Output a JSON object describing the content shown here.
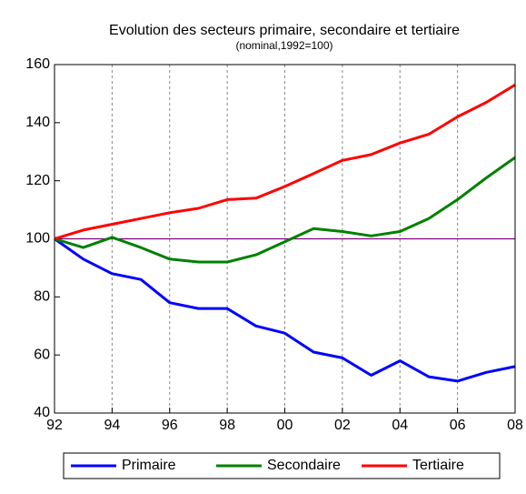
{
  "chart_data": {
    "type": "line",
    "title": "Evolution des secteurs primaire, secondaire et tertiaire",
    "subtitle": "(nominal,1992=100)",
    "categories": [
      "92",
      null,
      "94",
      null,
      "96",
      null,
      "98",
      null,
      "00",
      null,
      "02",
      null,
      "04",
      null,
      "06",
      null,
      "08"
    ],
    "series": [
      {
        "name": "Primaire",
        "color": "#0000ff",
        "values": [
          100,
          93,
          88,
          86,
          78,
          76,
          76,
          70,
          67.5,
          61,
          59,
          53,
          58,
          52.5,
          51,
          54,
          56
        ]
      },
      {
        "name": "Secondaire",
        "color": "#008000",
        "values": [
          100,
          97,
          100.5,
          97,
          93,
          92,
          92,
          94.5,
          99,
          103.5,
          102.5,
          101,
          102.5,
          107,
          113.5,
          121,
          128
        ]
      },
      {
        "name": "Tertiaire",
        "color": "#ff0000",
        "values": [
          100,
          103,
          105,
          107,
          109,
          110.5,
          113.5,
          114,
          118,
          122.5,
          127,
          129,
          133,
          136,
          142,
          147,
          153
        ]
      }
    ],
    "reference_line": {
      "value": 100,
      "color": "#800080"
    },
    "ylim": [
      40,
      160
    ],
    "yticks": [
      40,
      60,
      80,
      100,
      120,
      140,
      160
    ],
    "grid": "x-dashed",
    "legend": "bottom"
  }
}
